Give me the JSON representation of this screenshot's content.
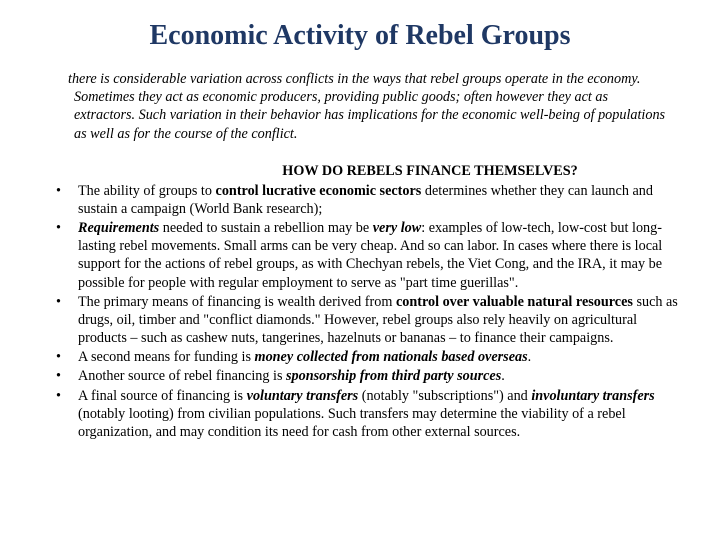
{
  "title": "Economic Activity of Rebel Groups",
  "intro_prefix": "t",
  "intro": "here is considerable variation across conflicts in the ways that rebel groups operate in the economy. Sometimes they act as economic producers, providing public goods; often however they act as extractors. Such variation in their behavior has implications for the economic well-being of populations as well as for the course of the conflict.",
  "heading": "HOW DO REBELS FINANCE THEMSELVES?",
  "b1_a": "The ability of groups to ",
  "b1_b": "control lucrative economic sectors",
  "b1_c": " determines whether they can launch and sustain a campaign (World Bank research);",
  "b2_a": "Requirements",
  "b2_b": " needed to sustain a rebellion may be ",
  "b2_c": "very low",
  "b2_d": ": examples of low-tech, low-cost but long-lasting rebel movements. Small arms can be very cheap. And so can labor. In cases where there is local support for the actions of rebel groups, as with Chechyan rebels, the Viet Cong, and the IRA, it may be possible for people with regular employment to serve as \"part time guerillas\".",
  "b3_a": "The primary means of financing is wealth derived from ",
  "b3_b": "control over valuable natural resources",
  "b3_c": " such as drugs, oil, timber and \"conflict diamonds.\" However, rebel groups also rely heavily on agricultural products – such as cashew nuts, tangerines, hazelnuts or bananas – to finance their campaigns.",
  "b4_a": "A second means for funding is ",
  "b4_b": "money collected from nationals based overseas",
  "b4_c": ".",
  "b5_a": "Another source of rebel financing is ",
  "b5_b": "sponsorship from third party sources",
  "b5_c": ".",
  "b6_a": "A final source of financing is ",
  "b6_b": "voluntary transfers",
  "b6_c": " (notably \"subscriptions\") and ",
  "b6_d": "involuntary transfers",
  "b6_e": " (notably looting) from civilian populations. Such transfers may determine the viability of a rebel organization, and may condition its need for cash from other external sources.",
  "colors": {
    "title": "#1f3864",
    "text": "#000000",
    "background": "#ffffff"
  }
}
